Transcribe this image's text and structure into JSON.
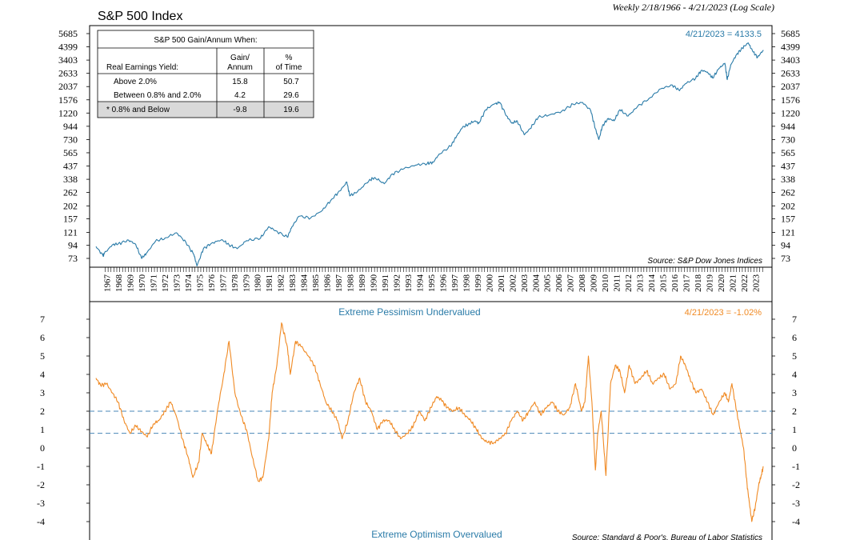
{
  "chart_data": [
    {
      "type": "line",
      "title": "S&P 500 Index",
      "subtitle": "Weekly 2/18/1966 - 4/21/2023 (Log Scale)",
      "scale": "log",
      "ylim": [
        66,
        6300
      ],
      "y_ticks": [
        "5685",
        "4399",
        "3403",
        "2633",
        "2037",
        "1576",
        "1220",
        "944",
        "730",
        "565",
        "437",
        "338",
        "262",
        "202",
        "157",
        "121",
        "94",
        "73"
      ],
      "last_value_label": "4/21/2023 = 4133.5",
      "source": "Source: S&P Dow Jones Indices",
      "color": "#2a7ba8",
      "series": [
        {
          "x": [
            1966.1,
            1966.7,
            1966.8,
            1967.5,
            1968.0,
            1968.9,
            1969.5,
            1970.0,
            1970.4,
            1971.2,
            1972.0,
            1973.0,
            1973.8,
            1974.5,
            1974.75,
            1975.3,
            1976.0,
            1976.9,
            1977.5,
            1978.2,
            1979.0,
            1980.2,
            1980.9,
            1981.5,
            1982.5,
            1982.9,
            1983.5,
            1984.5,
            1985.5,
            1986.3,
            1987.0,
            1987.6,
            1987.85,
            1988.5,
            1989.5,
            1990.0,
            1990.8,
            1991.5,
            1992.5,
            1993.5,
            1994.5,
            1995.0,
            1995.5,
            1996.5,
            1997.0,
            1997.5,
            1998.0,
            1998.6,
            1998.9,
            1999.5,
            2000.2,
            2000.7,
            2001.3,
            2001.75,
            2002.2,
            2002.8,
            2003.3,
            2004.0,
            2005.0,
            2006.0,
            2007.0,
            2007.8,
            2008.5,
            2008.9,
            2009.2,
            2009.5,
            2010.0,
            2010.5,
            2011.0,
            2011.7,
            2012.5,
            2013.5,
            2014.5,
            2015.5,
            2016.1,
            2016.6,
            2017.5,
            2018.0,
            2018.5,
            2018.95,
            2019.5,
            2020.0,
            2020.2,
            2020.5,
            2021.0,
            2021.5,
            2022.0,
            2022.4,
            2022.8,
            2023.3
          ],
          "values": [
            92,
            77,
            80,
            95,
            97,
            104,
            96,
            73,
            80,
            102,
            108,
            120,
            100,
            78,
            63,
            88,
            98,
            105,
            95,
            88,
            103,
            108,
            135,
            125,
            110,
            135,
            165,
            160,
            185,
            230,
            270,
            320,
            245,
            265,
            330,
            350,
            310,
            375,
            415,
            445,
            460,
            470,
            550,
            640,
            780,
            920,
            980,
            1050,
            1000,
            1300,
            1450,
            1500,
            1150,
            1000,
            1050,
            800,
            900,
            1120,
            1180,
            1260,
            1450,
            1500,
            1280,
            900,
            730,
            950,
            1100,
            1050,
            1300,
            1150,
            1380,
            1620,
            1950,
            2100,
            1880,
            2150,
            2400,
            2800,
            2700,
            2400,
            2900,
            3200,
            2330,
            3100,
            3800,
            4300,
            4750,
            4000,
            3600,
            4133
          ]
        }
      ]
    },
    {
      "type": "line",
      "title": "",
      "ylim": [
        -4.5,
        7.5
      ],
      "y_ticks": [
        "7",
        "6",
        "5",
        "4",
        "3",
        "2",
        "1",
        "0",
        "-1",
        "-2",
        "-3",
        "-4"
      ],
      "thresholds": [
        2.0,
        0.8
      ],
      "top_label": "Extreme Pessimism Undervalued",
      "bottom_label": "Extreme Optimism Overvalued",
      "last_value_label": "4/21/2023 = -1.02%",
      "source": "Source: Standard & Poor's, Bureau of Labor Statistics",
      "color": "#f08a24",
      "series": [
        {
          "x": [
            1966.1,
            1966.5,
            1967.0,
            1967.5,
            1968.0,
            1968.5,
            1969.0,
            1969.5,
            1970.0,
            1970.5,
            1971.0,
            1971.5,
            1972.0,
            1972.5,
            1973.0,
            1973.5,
            1974.0,
            1974.4,
            1974.9,
            1975.2,
            1975.6,
            1976.0,
            1976.5,
            1977.0,
            1977.5,
            1978.0,
            1978.5,
            1979.0,
            1979.5,
            1980.0,
            1980.4,
            1980.9,
            1981.2,
            1981.6,
            1982.0,
            1982.5,
            1982.75,
            1983.2,
            1983.7,
            1984.3,
            1984.8,
            1985.3,
            1985.8,
            1986.3,
            1986.8,
            1987.2,
            1987.7,
            1988.2,
            1988.7,
            1989.2,
            1989.7,
            1990.2,
            1990.7,
            1991.2,
            1991.7,
            1992.2,
            1992.8,
            1993.3,
            1993.8,
            1994.3,
            1994.8,
            1995.3,
            1995.7,
            1996.2,
            1996.7,
            1997.2,
            1997.7,
            1998.2,
            1998.7,
            1999.2,
            1999.7,
            2000.2,
            2000.7,
            2001.2,
            2001.7,
            2002.2,
            2002.7,
            2003.2,
            2003.7,
            2004.2,
            2004.7,
            2005.2,
            2005.7,
            2006.2,
            2006.7,
            2007.2,
            2007.7,
            2008.0,
            2008.3,
            2008.6,
            2008.9,
            2009.1,
            2009.4,
            2009.8,
            2010.2,
            2010.6,
            2011.0,
            2011.4,
            2011.8,
            2012.3,
            2012.8,
            2013.3,
            2013.8,
            2014.3,
            2014.8,
            2015.3,
            2015.8,
            2016.2,
            2016.6,
            2017.0,
            2017.5,
            2018.0,
            2018.5,
            2019.0,
            2019.5,
            2020.0,
            2020.3,
            2020.6,
            2021.0,
            2021.3,
            2021.6,
            2021.9,
            2022.1,
            2022.3,
            2022.6,
            2022.9,
            2023.1,
            2023.3
          ],
          "values": [
            3.8,
            3.4,
            3.5,
            3.0,
            2.5,
            1.5,
            0.8,
            1.2,
            0.9,
            0.6,
            1.3,
            1.5,
            2.0,
            2.5,
            1.7,
            0.5,
            -0.5,
            -1.6,
            -0.8,
            0.8,
            0.2,
            -0.3,
            2.0,
            3.8,
            5.8,
            3.0,
            1.8,
            1.0,
            -0.5,
            -1.8,
            -1.6,
            0.5,
            3.0,
            4.5,
            6.8,
            5.5,
            4.0,
            5.8,
            5.5,
            5.0,
            4.5,
            3.5,
            2.5,
            2.0,
            1.5,
            0.5,
            1.5,
            3.0,
            3.8,
            2.5,
            2.0,
            1.0,
            1.5,
            1.5,
            1.0,
            0.5,
            0.8,
            1.2,
            2.0,
            1.5,
            2.2,
            2.8,
            2.6,
            2.2,
            2.0,
            2.2,
            1.8,
            1.5,
            1.0,
            0.5,
            0.3,
            0.3,
            0.5,
            0.8,
            1.5,
            2.0,
            1.5,
            2.0,
            2.5,
            1.8,
            2.2,
            2.5,
            2.0,
            1.8,
            2.2,
            3.5,
            2.0,
            2.5,
            5.0,
            2.5,
            -1.2,
            0.8,
            2.0,
            -1.5,
            3.5,
            4.5,
            4.2,
            3.0,
            4.5,
            3.5,
            3.8,
            4.2,
            3.5,
            3.8,
            4.0,
            3.2,
            3.5,
            5.0,
            4.5,
            3.8,
            3.0,
            3.2,
            2.5,
            1.8,
            2.5,
            3.0,
            2.5,
            3.5,
            2.0,
            1.0,
            0.0,
            -2.0,
            -3.0,
            -4.0,
            -3.2,
            -2.0,
            -1.5,
            -1.02
          ]
        }
      ]
    }
  ],
  "year_labels": [
    "1967",
    "1968",
    "1969",
    "1970",
    "1971",
    "1972",
    "1973",
    "1974",
    "1975",
    "1976",
    "1977",
    "1978",
    "1979",
    "1980",
    "1981",
    "1982",
    "1983",
    "1984",
    "1985",
    "1986",
    "1987",
    "1988",
    "1989",
    "1990",
    "1991",
    "1992",
    "1993",
    "1994",
    "1995",
    "1996",
    "1997",
    "1998",
    "1999",
    "2000",
    "2001",
    "2002",
    "2003",
    "2004",
    "2005",
    "2006",
    "2007",
    "2008",
    "2009",
    "2010",
    "2011",
    "2012",
    "2013",
    "2014",
    "2015",
    "2016",
    "2017",
    "2018",
    "2019",
    "2020",
    "2021",
    "2022",
    "2023"
  ],
  "inset_table": {
    "title": "S&P 500 Gain/Annum When:",
    "row_header": "Real Earnings Yield:",
    "col1_header": [
      "Gain/",
      "Annum"
    ],
    "col2_header": [
      "%",
      "of Time"
    ],
    "rows": [
      {
        "label": "Above 2.0%",
        "gain": "15.8",
        "pct": "50.7",
        "highlight": false
      },
      {
        "label": "Between 0.8% and 2.0%",
        "gain": "4.2",
        "pct": "29.6",
        "highlight": false
      },
      {
        "label": "* 0.8% and Below",
        "gain": "-9.8",
        "pct": "19.6",
        "highlight": true
      }
    ]
  },
  "colors": {
    "index_line": "#2a7ba8",
    "yield_line": "#f08a24",
    "threshold_dash": "#4a87b8",
    "label_blue": "#2a7ba8",
    "label_orange": "#f08a24",
    "highlight_row": "#d9d9d9"
  }
}
